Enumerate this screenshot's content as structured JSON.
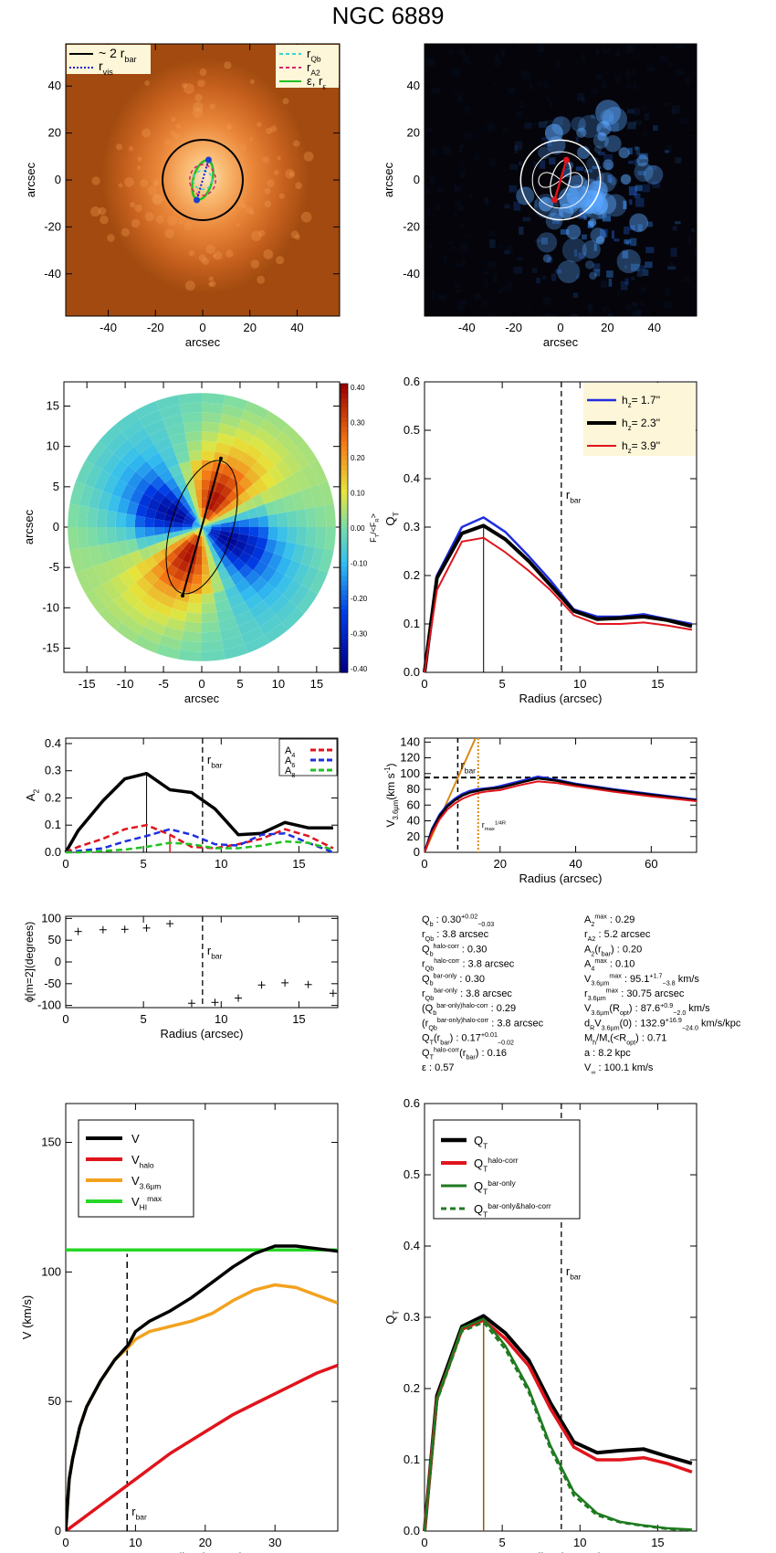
{
  "figure": {
    "title": "NGC 6889"
  },
  "chart_data": [
    {
      "id": "image-orange",
      "type": "image",
      "xlabel": "arcsec",
      "ylabel": "arcsec",
      "xlim": [
        -58,
        58
      ],
      "ylim": [
        -58,
        58
      ],
      "xticks": [
        -40,
        -20,
        0,
        20,
        40
      ],
      "yticks": [
        -40,
        -20,
        0,
        20,
        40
      ],
      "legend_left": [
        "~ 2 r",
        "r"
      ],
      "legend_left_sub": [
        "bar",
        "vis"
      ],
      "legend_right": [
        "r",
        "r",
        "ε, r"
      ],
      "legend_right_sub": [
        "Qb",
        "A2",
        "ε"
      ],
      "colors": {
        "legend_bg": "#fdf6d8",
        "circle": "#000000",
        "rqb": "#36d7d0",
        "ra2": "#d6246f",
        "eps": "#22c122",
        "vis": "#1b1bd4",
        "dots": "#1c3fd1"
      }
    },
    {
      "id": "image-blue",
      "type": "image",
      "xlabel": "arcsec",
      "ylabel": "arcsec",
      "xlim": [
        -58,
        58
      ],
      "ylim": [
        -58,
        58
      ],
      "xticks": [
        -40,
        -20,
        0,
        20,
        40
      ],
      "yticks": [
        -40,
        -20,
        0,
        20,
        40
      ]
    },
    {
      "id": "ratio-map",
      "type": "heatmap",
      "xlabel": "arcsec",
      "ylabel": "arcsec",
      "xlim": [
        -18,
        18
      ],
      "ylim": [
        -18,
        18
      ],
      "xticks": [
        -15,
        -10,
        -5,
        0,
        5,
        10,
        15
      ],
      "yticks": [
        -15,
        -10,
        -5,
        0,
        5,
        10,
        15
      ],
      "colorbar_ticks": [
        "0.40",
        "0.30",
        "0.20",
        "0.10",
        "0.00",
        "-0.10",
        "-0.20",
        "-0.30",
        "-0.40"
      ],
      "colorbar_label": "F",
      "bar_end": [
        2.5,
        8.5
      ]
    },
    {
      "id": "qt-hz",
      "type": "line",
      "xlabel": "Radius (arcsec)",
      "ylabel": "Q",
      "ylabel_sub": "T",
      "xlim": [
        0,
        17.5
      ],
      "ylim": [
        0,
        0.6
      ],
      "xticks": [
        0,
        5,
        10,
        15
      ],
      "yticks": [
        0.0,
        0.1,
        0.2,
        0.3,
        0.4,
        0.5,
        0.6
      ],
      "rbar": 8.8,
      "rbar_label": "r",
      "rbar_label_sub": "bar",
      "qb_marker": 3.8,
      "x": [
        0,
        0.8,
        2.4,
        3.8,
        5.2,
        6.7,
        8.1,
        9.6,
        11.1,
        12.6,
        14.1,
        15.6,
        17.2
      ],
      "series": [
        {
          "name": "h = 1.7''",
          "label": "h",
          "sub": "z",
          "val": "=  1.7''",
          "color": "#1f2ee0",
          "width": 2.5,
          "values": [
            0.0,
            0.2,
            0.3,
            0.32,
            0.29,
            0.24,
            0.19,
            0.13,
            0.115,
            0.115,
            0.12,
            0.11,
            0.1
          ]
        },
        {
          "name": "h = 2.3''",
          "label": "h",
          "sub": "z",
          "val": "=  2.3''",
          "color": "#000000",
          "width": 4,
          "values": [
            0.0,
            0.195,
            0.287,
            0.303,
            0.275,
            0.23,
            0.18,
            0.127,
            0.11,
            0.112,
            0.115,
            0.108,
            0.095
          ]
        },
        {
          "name": "h = 3.9''",
          "label": "h",
          "sub": "z",
          "val": "=  3.9''",
          "color": "#e0141c",
          "width": 2,
          "values": [
            0.0,
            0.17,
            0.27,
            0.278,
            0.248,
            0.21,
            0.17,
            0.118,
            0.1,
            0.1,
            0.103,
            0.097,
            0.088
          ]
        }
      ]
    },
    {
      "id": "fourier-amplitudes",
      "type": "line",
      "xlabel": "",
      "ylabel": "A",
      "ylabel_sub": "2",
      "xlim": [
        0,
        17.5
      ],
      "ylim": [
        0,
        0.42
      ],
      "xticks": [
        0,
        5,
        10,
        15
      ],
      "yticks": [
        0.0,
        0.1,
        0.2,
        0.3,
        0.4
      ],
      "rbar": 8.8,
      "rbar_label": "r",
      "rbar_label_sub": "bar",
      "a2max_marker": 5.2,
      "a4_marker": 6.7,
      "x": [
        0,
        0.8,
        2.4,
        3.8,
        5.2,
        6.7,
        8.1,
        9.6,
        11.1,
        12.6,
        14.1,
        15.6,
        17.2
      ],
      "series": [
        {
          "name": "A2",
          "color": "#000000",
          "width": 3.5,
          "dash": "",
          "values": [
            0.0,
            0.08,
            0.19,
            0.27,
            0.29,
            0.23,
            0.22,
            0.16,
            0.065,
            0.07,
            0.11,
            0.09,
            0.09
          ]
        },
        {
          "name": "A",
          "sub": "4",
          "color": "#e0141c",
          "width": 2.5,
          "dash": "7,4",
          "values": [
            0.0,
            0.02,
            0.05,
            0.085,
            0.1,
            0.065,
            0.02,
            0.015,
            0.03,
            0.05,
            0.085,
            0.06,
            0.015
          ]
        },
        {
          "name": "A",
          "sub": "6",
          "color": "#1f2ee0",
          "width": 2.5,
          "dash": "7,4",
          "values": [
            0.0,
            0.005,
            0.015,
            0.04,
            0.06,
            0.085,
            0.065,
            0.03,
            0.025,
            0.065,
            0.07,
            0.035,
            0.0
          ]
        },
        {
          "name": "A",
          "sub": "8",
          "color": "#22c122",
          "width": 2.5,
          "dash": "7,4",
          "values": [
            0.0,
            0.0,
            0.005,
            0.01,
            0.02,
            0.035,
            0.03,
            0.015,
            0.015,
            0.025,
            0.04,
            0.035,
            0.01
          ]
        }
      ]
    },
    {
      "id": "rotation-curve",
      "type": "line",
      "xlabel": "Radius (arcsec)",
      "ylabel": "V",
      "ylabel_sub": "3.6µm",
      "ylabel_unit": "(km s",
      "xlim": [
        0,
        72
      ],
      "ylim": [
        0,
        145
      ],
      "xticks": [
        0,
        20,
        40,
        60
      ],
      "yticks": [
        0,
        20,
        40,
        60,
        80,
        100,
        120,
        140
      ],
      "rbar": 8.8,
      "rbar_label": "r",
      "rbar_label_sub": "bar",
      "rmax": 14.2,
      "rmax_label": "r",
      "rmax_label_sub": "max",
      "rmax_label_sup": "1/4R",
      "vflat": 95,
      "x": [
        0,
        2,
        4,
        6,
        8,
        10,
        12,
        14,
        16,
        18,
        20,
        25,
        30,
        35,
        40,
        50,
        60,
        70,
        72
      ],
      "series": [
        {
          "name": "V blue",
          "color": "#1f2ee0",
          "width": 2.5,
          "values": [
            0,
            30,
            48,
            60,
            68,
            74,
            78,
            80,
            81,
            82,
            84,
            90,
            96,
            92,
            87,
            80,
            74,
            68,
            67
          ]
        },
        {
          "name": "V black",
          "color": "#000000",
          "width": 2.5,
          "values": [
            0,
            28,
            46,
            58,
            66,
            72,
            76,
            78,
            80,
            81,
            82,
            88,
            94,
            91,
            86,
            79,
            73,
            67,
            66
          ]
        },
        {
          "name": "V red",
          "color": "#e0141c",
          "width": 2,
          "values": [
            0,
            25,
            42,
            54,
            62,
            68,
            72,
            75,
            77,
            78,
            79,
            85,
            90,
            88,
            84,
            77,
            71,
            66,
            65
          ]
        }
      ],
      "tangent": {
        "color": "#d98a15",
        "x": [
          0,
          13.5
        ],
        "values": [
          0,
          145
        ]
      }
    },
    {
      "id": "phase",
      "type": "scatter",
      "xlabel": "Radius (arcsec)",
      "ylabel": "ϕ[m=2](degrees)",
      "xlim": [
        0,
        17.5
      ],
      "ylim": [
        -105,
        105
      ],
      "xticks": [
        0,
        5,
        10,
        15
      ],
      "yticks": [
        -100,
        -50,
        0,
        50,
        100
      ],
      "rbar": 8.8,
      "rbar_label": "r",
      "rbar_label_sub": "bar",
      "points": [
        [
          0.8,
          70
        ],
        [
          2.4,
          74
        ],
        [
          3.8,
          75
        ],
        [
          5.2,
          78
        ],
        [
          6.7,
          88
        ],
        [
          8.1,
          -95
        ],
        [
          9.6,
          -93
        ],
        [
          11.1,
          -83
        ],
        [
          12.6,
          -53
        ],
        [
          14.1,
          -48
        ],
        [
          15.6,
          -52
        ],
        [
          17.2,
          -72
        ]
      ]
    },
    {
      "id": "params",
      "type": "table",
      "left": [
        [
          "Q",
          "b",
          "",
          " :  0.30",
          "+0.02",
          "−0.03"
        ],
        [
          "r",
          "Qb",
          "",
          " :   3.8  arcsec",
          "",
          ""
        ],
        [
          "Q",
          "b",
          "halo-corr",
          " :  0.30",
          "",
          ""
        ],
        [
          "r",
          "Qb",
          "halo-corr",
          " :  3.8 arcsec",
          "",
          ""
        ],
        [
          "Q",
          "b",
          "bar-only",
          " :  0.30",
          "",
          ""
        ],
        [
          "r",
          "Qb",
          "bar-only",
          " :  3.8 arcsec",
          "",
          ""
        ],
        [
          "(Q",
          "b",
          "bar-only)halo-corr",
          " :  0.29",
          "",
          ""
        ],
        [
          "(r",
          "Qb",
          "bar-only)halo-corr",
          " :   3.8 arcsec",
          "",
          ""
        ],
        [
          "Q",
          "T",
          "",
          "(r",
          "bar",
          ") :  0.17",
          "+0.01",
          "−0.02"
        ],
        [
          "Q",
          "T",
          "halo-corr",
          "(r",
          "bar",
          ") :  0.16"
        ],
        [
          "ε",
          "",
          "",
          " :  0.57",
          "",
          ""
        ]
      ],
      "right": [
        [
          "A",
          "2",
          "max",
          " :  0.29"
        ],
        [
          "r",
          "A2",
          "",
          " :  5.2 arcsec"
        ],
        [
          "A",
          "2",
          "",
          "(r",
          "bar",
          ") :  0.20"
        ],
        [
          "A",
          "4",
          "max",
          " :  0.10"
        ],
        [
          "V",
          "3.6µm",
          "max",
          " :   95.1",
          "+1.7",
          "−3.8",
          " km/s"
        ],
        [
          "r",
          "3.6µm",
          "max",
          " :  30.75 arcsec"
        ],
        [
          "V",
          "3.6µm",
          "",
          "(R",
          "opt",
          ") :  87.6",
          "+0.9",
          "−2.0",
          " km/s"
        ],
        [
          "d",
          "R",
          "",
          "V",
          "3.6µm",
          "(0) :  132.9",
          "+16.9",
          "−24.0",
          " km/s/kpc"
        ],
        [
          "M",
          "h",
          "",
          "/M",
          "*",
          "(<R",
          "opt",
          ") :  0.71"
        ],
        [
          "a :  8.2 kpc"
        ],
        [
          "V",
          "∞",
          "",
          " :  100.1 km/s"
        ]
      ]
    },
    {
      "id": "velocity-decomposition",
      "type": "line",
      "xlabel": "Radius (arcsec)",
      "ylabel": "V (km/s)",
      "xlim": [
        0,
        39
      ],
      "ylim": [
        0,
        165
      ],
      "xticks": [
        0,
        10,
        20,
        30
      ],
      "yticks": [
        0,
        50,
        100,
        150
      ],
      "rbar": 8.8,
      "rbar_label": "r",
      "rbar_label_sub": "bar",
      "x": [
        0,
        0.5,
        1,
        2,
        3,
        5,
        7,
        9,
        10,
        12,
        15,
        18,
        21,
        24,
        27,
        30,
        33,
        36,
        39
      ],
      "series": [
        {
          "name": "V",
          "label": "V",
          "sub": "",
          "color": "#000000",
          "width": 3.5,
          "values": [
            0,
            20,
            28,
            40,
            48,
            58,
            66,
            72,
            77,
            81,
            85,
            90,
            96,
            102,
            107,
            110,
            110,
            109,
            108
          ]
        },
        {
          "name": "Vhalo",
          "label": "V",
          "sub": "halo",
          "color": "#e0141c",
          "width": 3.5,
          "values": [
            0,
            1,
            2,
            4,
            6,
            10,
            14,
            18,
            20,
            24,
            30,
            35,
            40,
            45,
            49,
            53,
            57,
            61,
            64
          ]
        },
        {
          "name": "V3.6µm",
          "label": "V",
          "sub": "3.6µm",
          "color": "#f2a21f",
          "width": 3.5,
          "values": [
            0,
            20,
            28,
            40,
            48,
            58,
            66,
            71,
            74,
            77,
            79,
            81,
            84,
            89,
            93,
            95,
            94,
            91,
            88
          ]
        },
        {
          "name": "VHImax",
          "label": "V",
          "sub": "HI",
          "sup": "max",
          "color": "#27d627",
          "width": 3.5,
          "values": [
            108.5,
            108.5,
            108.5,
            108.5,
            108.5,
            108.5,
            108.5,
            108.5,
            108.5,
            108.5,
            108.5,
            108.5,
            108.5,
            108.5,
            108.5,
            108.5,
            108.5,
            108.5,
            108.5
          ]
        }
      ]
    },
    {
      "id": "qt-corrections",
      "type": "line",
      "xlabel": "Radius (arcsec)",
      "ylabel": "Q",
      "ylabel_sub": "T",
      "xlim": [
        0,
        17.5
      ],
      "ylim": [
        0,
        0.6
      ],
      "xticks": [
        0,
        5,
        10,
        15
      ],
      "yticks": [
        0.0,
        0.1,
        0.2,
        0.3,
        0.4,
        0.5,
        0.6
      ],
      "rbar": 8.8,
      "rbar_label": "r",
      "rbar_label_sub": "bar",
      "qb_marker": 3.8,
      "x": [
        0,
        0.8,
        2.4,
        3.8,
        5.2,
        6.7,
        8.1,
        9.6,
        11.1,
        12.6,
        14.1,
        15.6,
        17.2
      ],
      "series": [
        {
          "name": "QT",
          "label": "Q",
          "sub": "T",
          "sup": "",
          "color": "#000000",
          "width": 4,
          "dash": "",
          "values": [
            0.0,
            0.19,
            0.287,
            0.302,
            0.278,
            0.24,
            0.18,
            0.125,
            0.11,
            0.113,
            0.115,
            0.105,
            0.095
          ]
        },
        {
          "name": "QT halo-corr",
          "label": "Q",
          "sub": "T",
          "sup": "halo-corr",
          "color": "#e0141c",
          "width": 3.5,
          "dash": "",
          "values": [
            0.0,
            0.185,
            0.283,
            0.296,
            0.27,
            0.232,
            0.172,
            0.118,
            0.1,
            0.1,
            0.103,
            0.095,
            0.083
          ]
        },
        {
          "name": "QT bar-only",
          "label": "Q",
          "sub": "T",
          "sup": "bar-only",
          "color": "#1f7a1f",
          "width": 2.5,
          "dash": "",
          "values": [
            0.0,
            0.185,
            0.285,
            0.298,
            0.26,
            0.2,
            0.12,
            0.055,
            0.025,
            0.013,
            0.008,
            0.004,
            0.002
          ]
        },
        {
          "name": "QT bar-only&halo-corr",
          "label": "Q",
          "sub": "T",
          "sup": "bar-only&halo-corr",
          "color": "#1f7a1f",
          "width": 2.5,
          "dash": "6,4",
          "values": [
            0.0,
            0.182,
            0.28,
            0.293,
            0.255,
            0.195,
            0.115,
            0.05,
            0.022,
            0.012,
            0.007,
            0.003,
            0.001
          ]
        }
      ]
    }
  ]
}
